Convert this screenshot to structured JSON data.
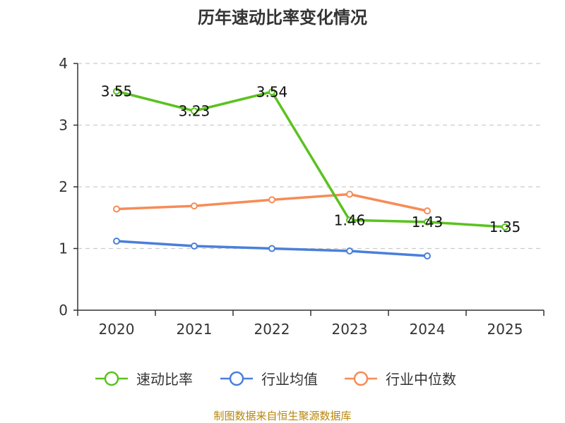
{
  "chart_data": {
    "type": "line",
    "title": "历年速动比率变化情况",
    "categories": [
      "2020",
      "2021",
      "2022",
      "2023",
      "2024",
      "2025"
    ],
    "yticks": [
      "0",
      "1",
      "2",
      "3",
      "4"
    ],
    "ylim": [
      0,
      4
    ],
    "grid": true,
    "legend_position": "bottom",
    "series": [
      {
        "name": "速动比率",
        "color": "#5ac21e",
        "values": [
          3.55,
          3.23,
          3.54,
          1.46,
          1.43,
          1.35
        ],
        "labels": [
          "3.55",
          "3.23",
          "3.54",
          "1.46",
          "1.43",
          "1.35"
        ]
      },
      {
        "name": "行业均值",
        "color": "#4a7fdb",
        "values": [
          1.12,
          1.04,
          1.0,
          0.96,
          0.88,
          null
        ]
      },
      {
        "name": "行业中位数",
        "color": "#f68c57",
        "values": [
          1.64,
          1.69,
          1.79,
          1.88,
          1.61,
          null
        ]
      }
    ],
    "source": "制图数据来自恒生聚源数据库"
  }
}
